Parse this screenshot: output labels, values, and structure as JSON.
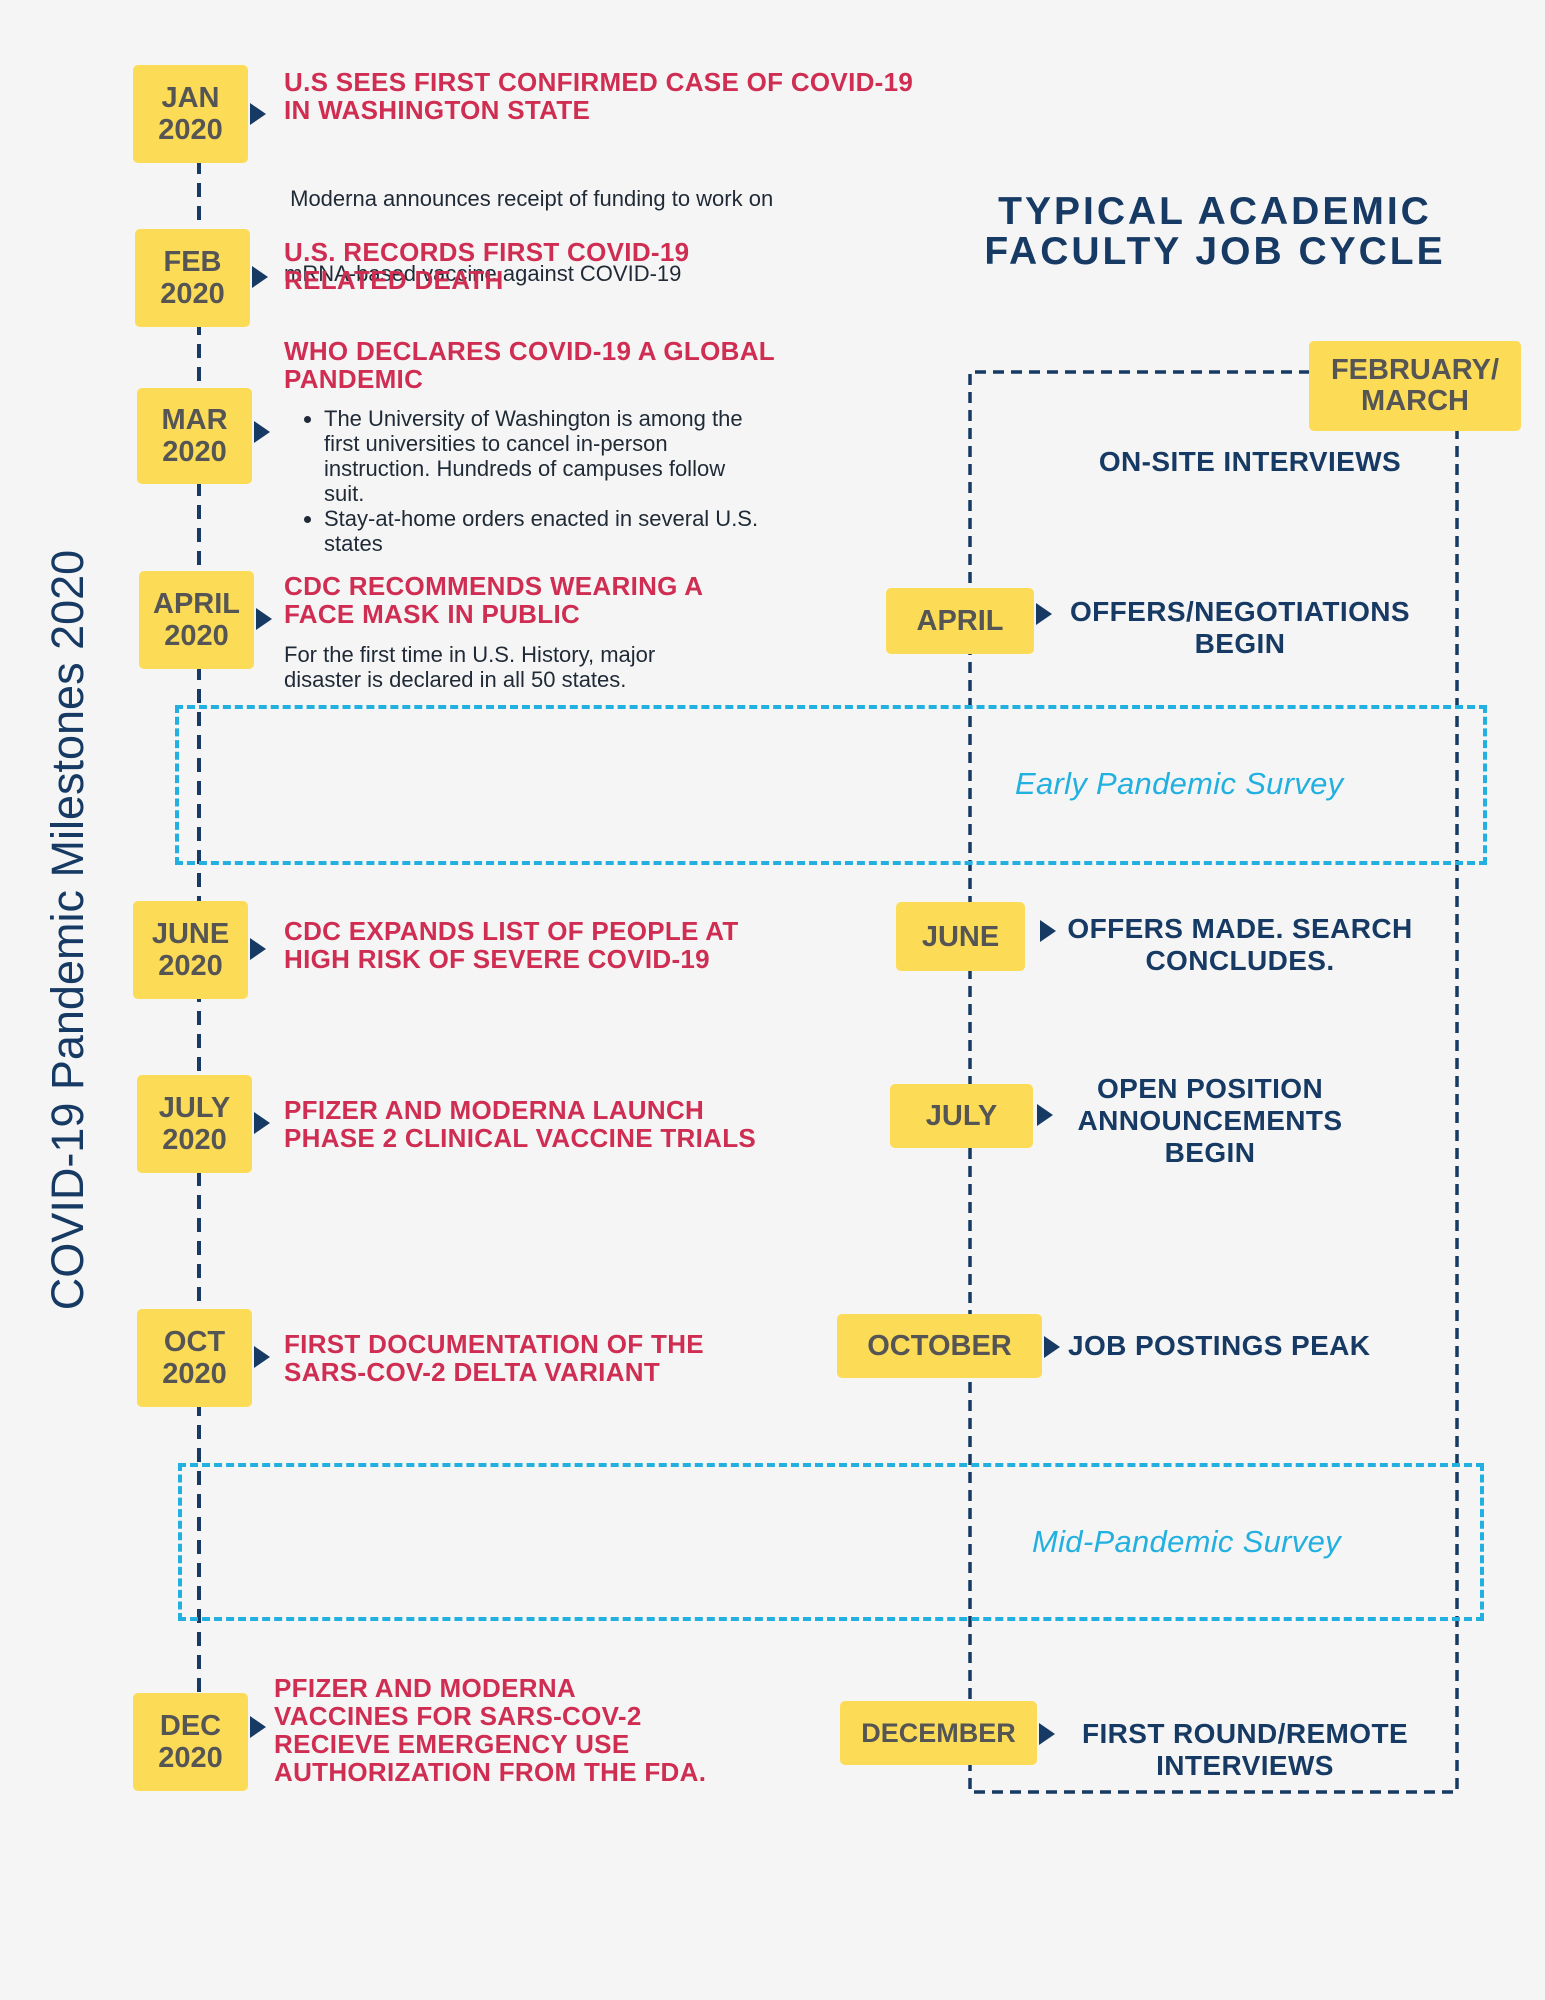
{
  "side_title": "COVID-19 Pandemic Milestones 2020",
  "right_title": {
    "line1": "TYPICAL ACADEMIC",
    "line2": "FACULTY JOB CYCLE"
  },
  "milestones": [
    {
      "month": "JAN",
      "year": "2020",
      "heading": [
        "U.S SEES FIRST CONFIRMED CASE OF COVID-19",
        "IN WASHINGTON STATE"
      ],
      "body": [
        " Moderna announces receipt of funding to work on",
        "mRNA-based vaccine against COVID-19"
      ]
    },
    {
      "month": "FEB",
      "year": "2020",
      "heading": [
        "U.S. RECORDS FIRST COVID-19",
        "RELATED DEATH"
      ]
    },
    {
      "month": "MAR",
      "year": "2020",
      "heading": [
        "WHO DECLARES COVID-19 A GLOBAL",
        "PANDEMIC"
      ],
      "bullets": [
        [
          "The University of Washington is among the",
          "first universities to cancel in-person",
          "instruction. Hundreds of campuses follow",
          "suit."
        ],
        [
          "Stay-at-home orders enacted in several U.S.",
          "states"
        ]
      ]
    },
    {
      "month": "APRIL",
      "year": "2020",
      "heading": [
        "CDC RECOMMENDS WEARING A",
        "FACE MASK IN PUBLIC"
      ],
      "body": [
        "For the first time in U.S. History, major",
        "disaster is  declared in all 50 states."
      ]
    },
    {
      "month": "JUNE",
      "year": "2020",
      "heading": [
        "CDC EXPANDS LIST OF PEOPLE AT",
        "HIGH RISK OF SEVERE COVID-19"
      ]
    },
    {
      "month": "JULY",
      "year": "2020",
      "heading": [
        "PFIZER AND MODERNA LAUNCH",
        "PHASE 2 CLINICAL VACCINE  TRIALS"
      ]
    },
    {
      "month": "OCT",
      "year": "2020",
      "heading": [
        "FIRST DOCUMENTATION OF THE",
        "SARS-COV-2 DELTA VARIANT"
      ]
    },
    {
      "month": "DEC",
      "year": "2020",
      "heading": [
        "PFIZER AND MODERNA",
        "VACCINES FOR SARS-COV-2",
        "RECIEVE EMERGENCY USE",
        "AUTHORIZATION FROM THE FDA."
      ]
    }
  ],
  "job_cycle": [
    {
      "month": [
        "FEBRUARY/",
        "MARCH"
      ],
      "text": [
        "ON-SITE INTERVIEWS"
      ]
    },
    {
      "month": [
        "APRIL"
      ],
      "text": [
        "OFFERS/NEGOTIATIONS",
        "BEGIN"
      ]
    },
    {
      "month": [
        "JUNE"
      ],
      "text": [
        "OFFERS MADE. SEARCH",
        "CONCLUDES."
      ]
    },
    {
      "month": [
        "JULY"
      ],
      "text": [
        "OPEN POSITION",
        "ANNOUNCEMENTS",
        "BEGIN"
      ]
    },
    {
      "month": [
        "OCTOBER"
      ],
      "text": [
        "JOB POSTINGS PEAK"
      ]
    },
    {
      "month": [
        "DECEMBER"
      ],
      "text": [
        "FIRST ROUND/REMOTE",
        "INTERVIEWS"
      ]
    }
  ],
  "surveys": [
    "Early Pandemic Survey",
    "Mid-Pandemic Survey"
  ],
  "colors": {
    "background": "#f5f5f5",
    "box": "#fcdc56",
    "navy": "#163a63",
    "red": "#cf2d52",
    "survey": "#21b0e0"
  }
}
